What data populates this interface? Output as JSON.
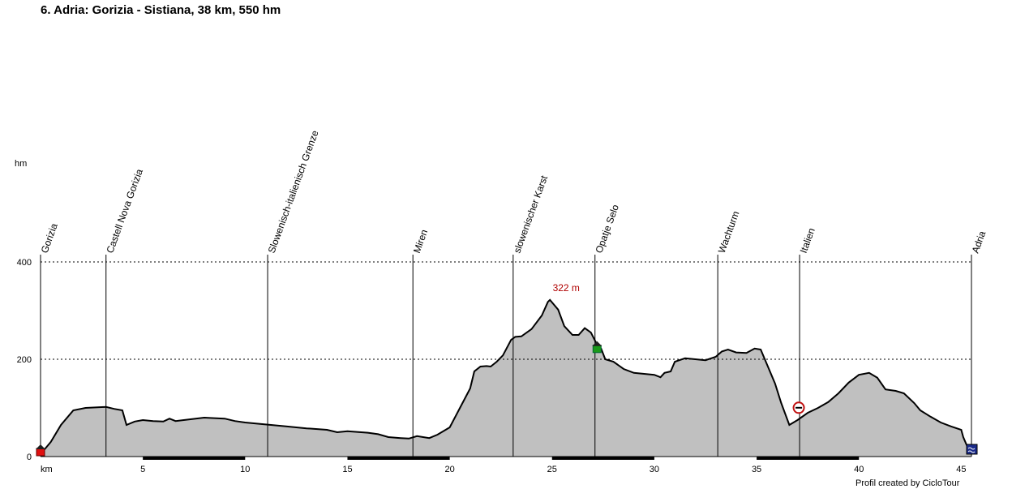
{
  "title": "6. Adria: Gorizia - Sistiana, 38 km, 550 hm",
  "y_unit": "hm",
  "x_unit": "km",
  "credit": "Profil created by CicloTour",
  "colors": {
    "fill": "#c0c0c0",
    "line": "#000000",
    "grid": "#000000",
    "peak_label": "#b00000"
  },
  "chart_data": {
    "type": "area",
    "title": "6. Adria: Gorizia - Sistiana, 38 km, 550 hm",
    "xlabel": "km",
    "ylabel": "hm",
    "xlim": [
      0,
      45.5
    ],
    "ylim": [
      0,
      400
    ],
    "x_ticks": [
      0,
      5,
      10,
      15,
      20,
      25,
      30,
      35,
      40,
      45
    ],
    "y_ticks": [
      0,
      200,
      400
    ],
    "grid_y": [
      200,
      400
    ],
    "profile": [
      [
        0,
        5
      ],
      [
        0.5,
        30
      ],
      [
        1.0,
        65
      ],
      [
        1.6,
        95
      ],
      [
        2.2,
        100
      ],
      [
        3.2,
        102
      ],
      [
        3.6,
        98
      ],
      [
        4.0,
        95
      ],
      [
        4.2,
        65
      ],
      [
        4.6,
        72
      ],
      [
        5.0,
        75
      ],
      [
        5.5,
        73
      ],
      [
        6.0,
        72
      ],
      [
        6.3,
        78
      ],
      [
        6.6,
        73
      ],
      [
        7.0,
        75
      ],
      [
        8.0,
        80
      ],
      [
        9.0,
        78
      ],
      [
        9.5,
        73
      ],
      [
        10,
        70
      ],
      [
        11,
        66
      ],
      [
        12,
        62
      ],
      [
        13,
        58
      ],
      [
        14,
        55
      ],
      [
        14.5,
        50
      ],
      [
        15,
        52
      ],
      [
        16,
        49
      ],
      [
        16.5,
        46
      ],
      [
        17,
        40
      ],
      [
        17.6,
        38
      ],
      [
        18,
        37
      ],
      [
        18.4,
        42
      ],
      [
        19,
        38
      ],
      [
        19.4,
        45
      ],
      [
        20,
        60
      ],
      [
        20.5,
        100
      ],
      [
        21,
        140
      ],
      [
        21.2,
        175
      ],
      [
        21.5,
        185
      ],
      [
        21.8,
        186
      ],
      [
        22,
        185
      ],
      [
        22.3,
        195
      ],
      [
        22.6,
        208
      ],
      [
        23,
        240
      ],
      [
        23.2,
        246
      ],
      [
        23.5,
        247
      ],
      [
        24,
        262
      ],
      [
        24.5,
        290
      ],
      [
        24.8,
        318
      ],
      [
        24.9,
        322
      ],
      [
        25.3,
        302
      ],
      [
        25.6,
        268
      ],
      [
        26,
        250
      ],
      [
        26.3,
        250
      ],
      [
        26.6,
        264
      ],
      [
        26.9,
        255
      ],
      [
        27.2,
        230
      ],
      [
        27.4,
        222
      ],
      [
        27.6,
        200
      ],
      [
        28,
        195
      ],
      [
        28.5,
        180
      ],
      [
        29,
        172
      ],
      [
        29.5,
        170
      ],
      [
        30,
        168
      ],
      [
        30.3,
        163
      ],
      [
        30.5,
        172
      ],
      [
        30.8,
        175
      ],
      [
        31.0,
        195
      ],
      [
        31.5,
        202
      ],
      [
        32,
        200
      ],
      [
        32.5,
        198
      ],
      [
        33,
        205
      ],
      [
        33.3,
        216
      ],
      [
        33.6,
        220
      ],
      [
        34,
        214
      ],
      [
        34.5,
        213
      ],
      [
        34.9,
        222
      ],
      [
        35.2,
        220
      ],
      [
        35.5,
        190
      ],
      [
        35.9,
        150
      ],
      [
        36.2,
        110
      ],
      [
        36.6,
        65
      ],
      [
        37,
        75
      ],
      [
        37.5,
        90
      ],
      [
        38,
        100
      ],
      [
        38.5,
        112
      ],
      [
        39,
        130
      ],
      [
        39.5,
        152
      ],
      [
        40,
        168
      ],
      [
        40.5,
        172
      ],
      [
        40.9,
        162
      ],
      [
        41.3,
        138
      ],
      [
        41.8,
        135
      ],
      [
        42.2,
        130
      ],
      [
        42.7,
        110
      ],
      [
        43,
        95
      ],
      [
        43.5,
        82
      ],
      [
        44,
        70
      ],
      [
        44.5,
        62
      ],
      [
        45,
        55
      ],
      [
        45.1,
        40
      ],
      [
        45.3,
        20
      ],
      [
        45.5,
        8
      ]
    ],
    "peak": {
      "km": 24.9,
      "elev": 322,
      "label": "322 m"
    },
    "waypoints": [
      {
        "km": 0,
        "name": "Gorizia"
      },
      {
        "km": 3.2,
        "name": "Castell Nova Gorizia"
      },
      {
        "km": 11.1,
        "name": "Slowenisch-italienisch Grenze"
      },
      {
        "km": 18.2,
        "name": "Miren"
      },
      {
        "km": 23.1,
        "name": "slowenischer Karst"
      },
      {
        "km": 27.1,
        "name": "Opatje Selo"
      },
      {
        "km": 33.1,
        "name": "Wachturm"
      },
      {
        "km": 37.1,
        "name": "Italien"
      },
      {
        "km": 45.5,
        "name": "Adria"
      }
    ],
    "markers": [
      {
        "km": 0,
        "elev": 5,
        "kind": "home-start"
      },
      {
        "km": 27.2,
        "elev": 222,
        "kind": "house-poi"
      },
      {
        "km": 37.1,
        "elev": 97,
        "kind": "border-sign"
      },
      {
        "km": 45.5,
        "elev": 10,
        "kind": "sea-end"
      }
    ]
  }
}
